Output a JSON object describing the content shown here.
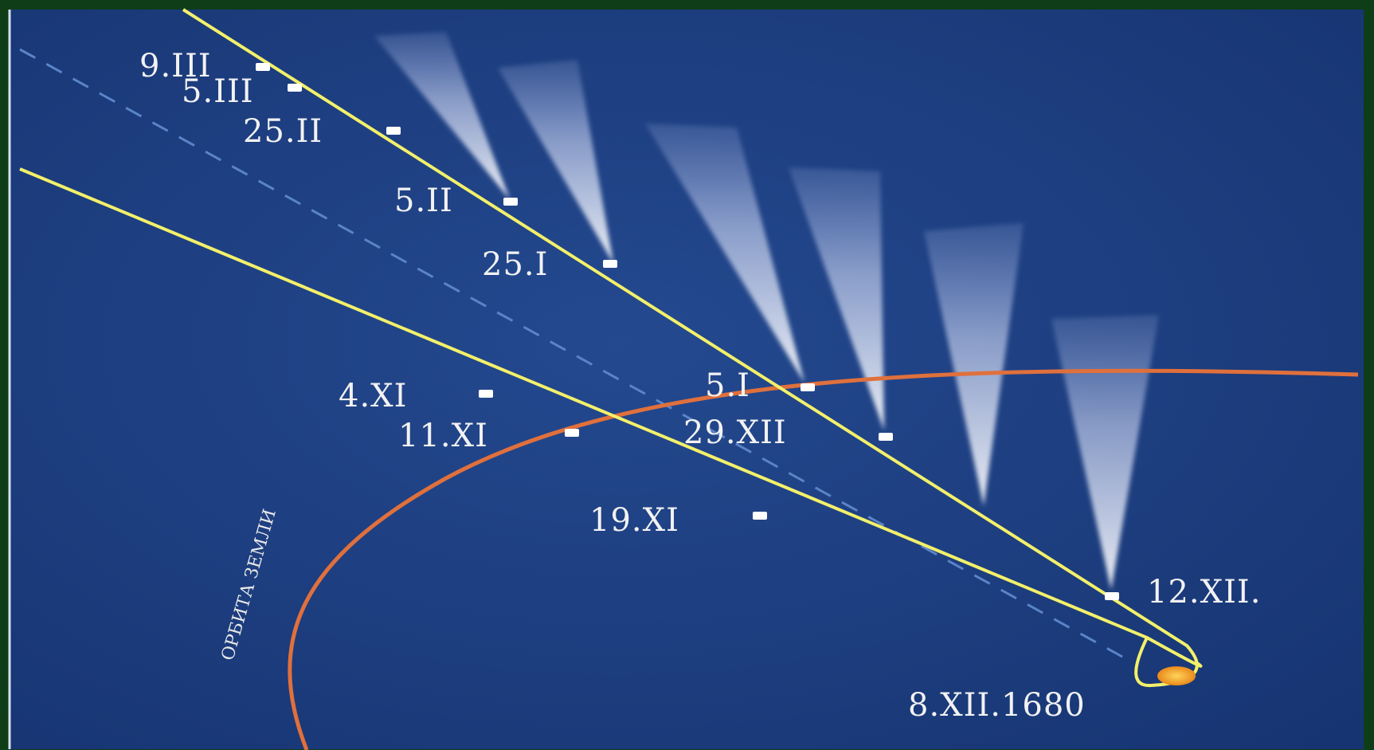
{
  "diagram": {
    "colors": {
      "sky": "#1e3f86",
      "sky_dark": "#163370",
      "comet_path": "#f3f06a",
      "earth_orbit": "#e0703c",
      "tail": "#e6ecff",
      "sun": "#f5a623",
      "marker": "#ffffff",
      "frame": "#0f3d18"
    },
    "earth_orbit_label": "ОРБИТА ЗЕМЛИ",
    "perihelion_label": "8.XII.1680",
    "outbound_dates": [
      {
        "id": "d-9-iii",
        "label": "9.III"
      },
      {
        "id": "d-5-iii",
        "label": "5.III"
      },
      {
        "id": "d-25-ii",
        "label": "25.II"
      },
      {
        "id": "d-5-ii",
        "label": "5.II"
      },
      {
        "id": "d-25-i",
        "label": "25.I"
      },
      {
        "id": "d-5-i",
        "label": "5.I"
      },
      {
        "id": "d-29-xii",
        "label": "29.XII"
      },
      {
        "id": "d-12-xii",
        "label": "12.XII."
      }
    ],
    "inbound_dates": [
      {
        "id": "d-4-xi",
        "label": "4.XI"
      },
      {
        "id": "d-11-xi",
        "label": "11.XI"
      },
      {
        "id": "d-19-xi",
        "label": "19.XI"
      }
    ],
    "icons": {
      "sun": "sun-icon",
      "markers": "date-marker-icon"
    }
  }
}
